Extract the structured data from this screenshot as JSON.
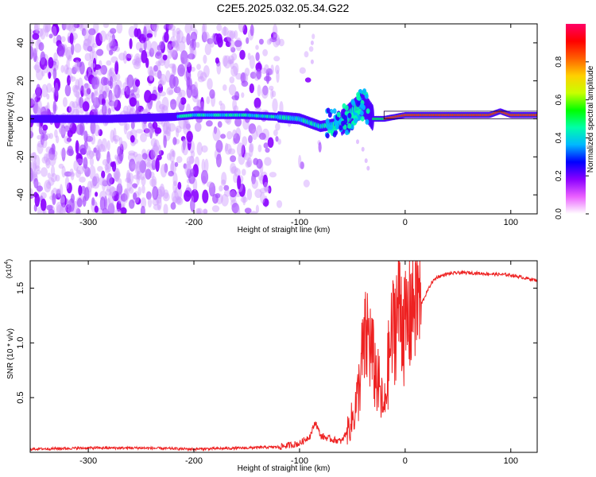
{
  "title": "C2E5.2025.032.05.34.G22",
  "colorbar": {
    "label": "Normalized spectral amplitude",
    "ticks": [
      "0.0",
      "0.2",
      "0.4",
      "0.6",
      "0.8"
    ],
    "colors": [
      "#ffffff",
      "#ea60ff",
      "#8a00ff",
      "#0000ff",
      "#00b8ff",
      "#00ffa8",
      "#00ff00",
      "#c8ff00",
      "#ffd000",
      "#ff6000",
      "#ff0000",
      "#ff0066"
    ]
  },
  "chart_data": [
    {
      "type": "heatmap",
      "xlabel": "Height of straight line (km)",
      "ylabel": "Frequency (Hz)",
      "xlim": [
        -355,
        125
      ],
      "ylim": [
        -50,
        50
      ],
      "xticks": [
        -300,
        -200,
        -100,
        0,
        100
      ],
      "yticks": [
        -40,
        -20,
        0,
        20,
        40
      ],
      "value_range": [
        0,
        1
      ],
      "ridge": {
        "description": "dominant frequency band",
        "x": [
          -350,
          -300,
          -280,
          -220,
          -200,
          -150,
          -120,
          -100,
          -90,
          -80,
          -70,
          -60,
          -50,
          -40,
          -35,
          -30,
          -20,
          -10,
          0,
          20,
          50,
          80,
          90,
          100,
          125
        ],
        "y": [
          0,
          0,
          0,
          1,
          2,
          2,
          1,
          0,
          -2,
          -4,
          -3,
          -2,
          3,
          8,
          4,
          0,
          0,
          1,
          2,
          2,
          2,
          2,
          4,
          2,
          2
        ]
      }
    },
    {
      "type": "line",
      "xlabel": "Height of straight line (km)",
      "ylabel": "SNR (10 * v/v)",
      "yscale_label": "(x10",
      "yscale_exp": "4",
      "xlim": [
        -355,
        125
      ],
      "ylim": [
        0,
        1.75
      ],
      "xticks": [
        -300,
        -200,
        -100,
        0,
        100
      ],
      "yticks": [
        "0.5",
        "1.0",
        "1.5"
      ],
      "ytick_values": [
        0.5,
        1.0,
        1.5
      ],
      "line_color": "#ee2222",
      "series": [
        {
          "x": [
            -355,
            -300,
            -250,
            -200,
            -150,
            -120,
            -100,
            -90,
            -85,
            -80,
            -70,
            -60,
            -50,
            -45,
            -40,
            -35,
            -30,
            -25,
            -20,
            -15,
            -10,
            -5,
            0,
            5,
            10,
            15,
            20,
            25,
            30,
            40,
            50,
            60,
            80,
            100,
            125
          ],
          "y": [
            0.03,
            0.04,
            0.04,
            0.03,
            0.04,
            0.05,
            0.08,
            0.15,
            0.28,
            0.15,
            0.12,
            0.1,
            0.3,
            0.5,
            0.9,
            1.1,
            0.8,
            0.6,
            0.35,
            0.9,
            1.2,
            1.4,
            1.1,
            1.3,
            1.5,
            1.35,
            1.45,
            1.55,
            1.6,
            1.63,
            1.64,
            1.64,
            1.63,
            1.62,
            1.57
          ]
        }
      ]
    }
  ]
}
